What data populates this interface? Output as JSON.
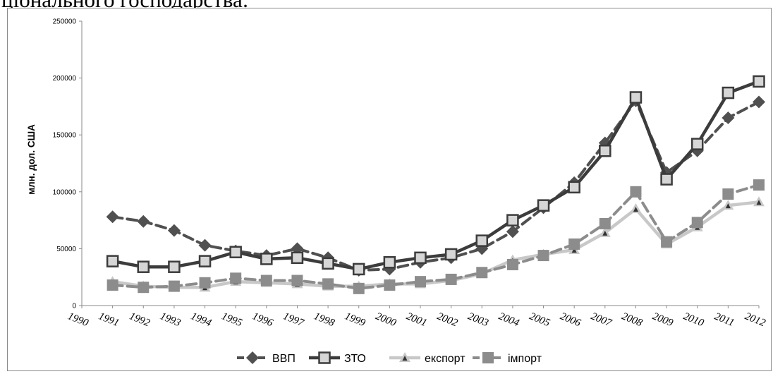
{
  "heading": "ціонального господарства:",
  "chart_data": {
    "type": "line",
    "title": "",
    "xlabel": "",
    "ylabel": "млн. дол. США",
    "ylim": [
      0,
      250000
    ],
    "y_ticks": [
      "0",
      "50000",
      "100000",
      "150000",
      "200000",
      "250000"
    ],
    "x_ticks": [
      "1990",
      "1991",
      "1992",
      "1993",
      "1994",
      "1995",
      "1996",
      "1997",
      "1998",
      "1999",
      "2000",
      "2001",
      "2002",
      "2003",
      "2004",
      "2005",
      "2006",
      "2007",
      "2008",
      "2009",
      "2010",
      "2011",
      "2012"
    ],
    "categories": [
      "1991",
      "1992",
      "1993",
      "1994",
      "1995",
      "1996",
      "1997",
      "1998",
      "1999",
      "2000",
      "2001",
      "2002",
      "2003",
      "2004",
      "2005",
      "2006",
      "2007",
      "2008",
      "2009",
      "2010",
      "2011",
      "2012"
    ],
    "legend_position": "bottom",
    "grid": false,
    "series": [
      {
        "name": "ВВП",
        "color": "#505050",
        "marker": "diamond",
        "dashed": true,
        "values": [
          78000,
          74000,
          66000,
          53000,
          48000,
          44000,
          50000,
          42000,
          31000,
          32000,
          38000,
          42000,
          50000,
          65000,
          86000,
          108000,
          143000,
          180000,
          117000,
          136000,
          165000,
          179000
        ]
      },
      {
        "name": "ЗТО",
        "color": "#3c3c3c",
        "marker": "square-hollow",
        "dashed": false,
        "values": [
          39000,
          34000,
          34000,
          39000,
          47000,
          41000,
          42000,
          37000,
          32000,
          38000,
          42000,
          45000,
          57000,
          75000,
          88000,
          104000,
          136000,
          183000,
          111000,
          142000,
          187000,
          197000
        ]
      },
      {
        "name": "експорт",
        "color": "#c8c8c8",
        "marker": "triangle",
        "dashed": false,
        "values": [
          21000,
          17000,
          16000,
          16000,
          21000,
          20000,
          19000,
          17000,
          17000,
          19000,
          19000,
          22000,
          28000,
          40000,
          45000,
          49000,
          64000,
          85000,
          54000,
          69000,
          88000,
          91000
        ]
      },
      {
        "name": "імпорт",
        "color": "#8c8c8c",
        "marker": "square",
        "dashed": true,
        "values": [
          18000,
          16000,
          17000,
          20000,
          24000,
          22000,
          22000,
          19000,
          15000,
          18000,
          21000,
          23000,
          29000,
          36000,
          44000,
          54000,
          72000,
          100000,
          56000,
          73000,
          98000,
          106000
        ]
      }
    ]
  }
}
